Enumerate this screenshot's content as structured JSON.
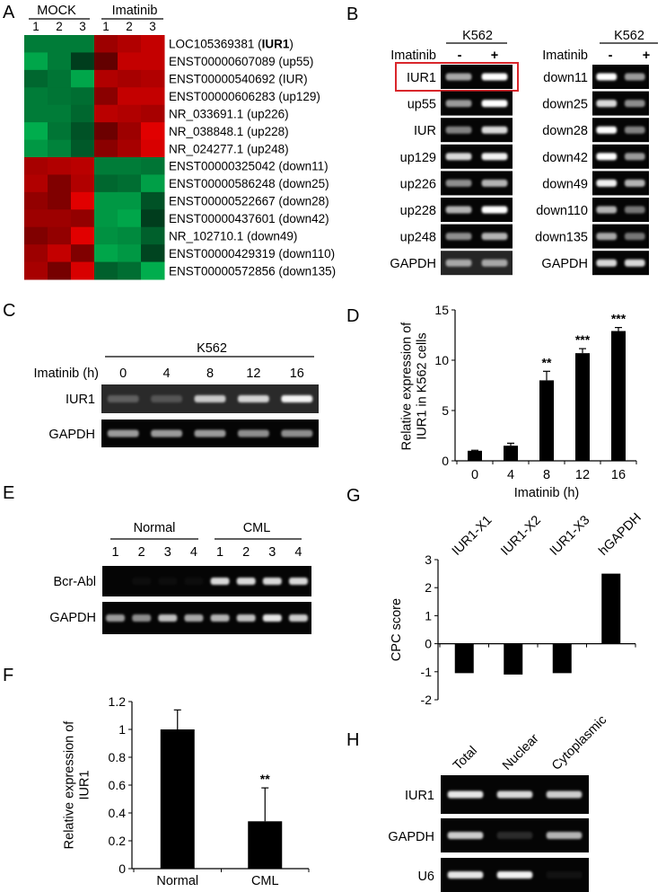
{
  "panel_labels": {
    "A": "A",
    "B": "B",
    "C": "C",
    "D": "D",
    "E": "E",
    "F": "F",
    "G": "G",
    "H": "H"
  },
  "panel_A": {
    "groups": [
      {
        "name": "MOCK",
        "cols": [
          "1",
          "2",
          "3"
        ]
      },
      {
        "name": "Imatinib",
        "cols": [
          "1",
          "2",
          "3"
        ]
      }
    ],
    "colors": {
      "high": "#e00000",
      "low": "#00b050",
      "mid": "#1a1a00"
    },
    "rows": [
      {
        "id": "LOC105369381",
        "name": "IUR1",
        "bold": true,
        "values": [
          -0.6,
          -0.6,
          -0.6,
          0.6,
          0.7,
          0.8
        ]
      },
      {
        "id": "ENST00000607089",
        "name": "up55",
        "values": [
          -0.9,
          -0.6,
          -0.15,
          0.3,
          0.8,
          0.8
        ]
      },
      {
        "id": "ENST00000540692",
        "name": "IUR",
        "values": [
          -0.45,
          -0.55,
          -0.9,
          0.7,
          0.65,
          0.7
        ]
      },
      {
        "id": "ENST00000606283",
        "name": "up129",
        "values": [
          -0.6,
          -0.55,
          -0.5,
          0.5,
          0.8,
          0.8
        ]
      },
      {
        "id": "NR_033691.1",
        "name": "up226",
        "values": [
          -0.6,
          -0.6,
          -0.45,
          0.75,
          0.7,
          0.65
        ]
      },
      {
        "id": "NR_038848.1",
        "name": "up228",
        "values": [
          -0.95,
          -0.55,
          -0.3,
          0.35,
          0.6,
          0.95
        ]
      },
      {
        "id": "NR_024277.1",
        "name": "up248",
        "values": [
          -0.8,
          -0.65,
          -0.35,
          0.5,
          0.65,
          0.9
        ]
      },
      {
        "id": "ENST00000325042",
        "name": "down11",
        "values": [
          0.65,
          0.7,
          0.75,
          -0.6,
          -0.6,
          -0.55
        ]
      },
      {
        "id": "ENST00000586248",
        "name": "down25",
        "values": [
          0.7,
          0.45,
          0.7,
          -0.45,
          -0.5,
          -0.85
        ]
      },
      {
        "id": "ENST00000522667",
        "name": "down28",
        "values": [
          0.55,
          0.45,
          0.95,
          -0.8,
          -0.8,
          -0.3
        ]
      },
      {
        "id": "ENST00000437601",
        "name": "down42",
        "values": [
          0.6,
          0.6,
          0.55,
          -0.8,
          -0.9,
          -0.15
        ]
      },
      {
        "id": "NR_102710.1",
        "name": "down49",
        "values": [
          0.45,
          0.55,
          0.95,
          -0.75,
          -0.7,
          -0.4
        ]
      },
      {
        "id": "ENST00000429319",
        "name": "down110",
        "values": [
          0.6,
          0.8,
          0.45,
          -0.9,
          -0.8,
          -0.2
        ]
      },
      {
        "id": "ENST00000572856",
        "name": "down135",
        "values": [
          0.65,
          0.4,
          0.9,
          -0.4,
          -0.5,
          -0.95
        ]
      }
    ]
  },
  "panel_B": {
    "highlight_color": "#d9262b",
    "highlighted_row": "IUR1",
    "blots": [
      {
        "cell": "K562",
        "treatment": "Imatinib",
        "lanes": [
          "-",
          "+"
        ],
        "rows": [
          {
            "label": "IUR1",
            "bands": [
              0.65,
              1.0
            ]
          },
          {
            "label": "up55",
            "bands": [
              0.6,
              1.0
            ]
          },
          {
            "label": "IUR",
            "bands": [
              0.5,
              0.85
            ]
          },
          {
            "label": "up129",
            "bands": [
              0.85,
              0.95
            ]
          },
          {
            "label": "up226",
            "bands": [
              0.55,
              0.7
            ]
          },
          {
            "label": "up228",
            "bands": [
              0.7,
              1.0
            ]
          },
          {
            "label": "up248",
            "bands": [
              0.55,
              0.7
            ]
          },
          {
            "label": "GAPDH",
            "bands": [
              0.6,
              0.6
            ]
          }
        ]
      },
      {
        "cell": "K562",
        "treatment": "Imatinib",
        "lanes": [
          "-",
          "+"
        ],
        "rows": [
          {
            "label": "down11",
            "bands": [
              1.0,
              0.6
            ]
          },
          {
            "label": "down25",
            "bands": [
              0.85,
              0.55
            ]
          },
          {
            "label": "down28",
            "bands": [
              1.0,
              0.5
            ]
          },
          {
            "label": "down42",
            "bands": [
              1.0,
              0.6
            ]
          },
          {
            "label": "down49",
            "bands": [
              0.95,
              0.7
            ]
          },
          {
            "label": "down110",
            "bands": [
              0.7,
              0.45
            ]
          },
          {
            "label": "down135",
            "bands": [
              0.65,
              0.45
            ]
          },
          {
            "label": "GAPDH",
            "bands": [
              0.85,
              0.85
            ]
          }
        ]
      }
    ]
  },
  "panel_C": {
    "cell": "K562",
    "treatment": "Imatinib (h)",
    "lanes": [
      "0",
      "4",
      "8",
      "12",
      "16"
    ],
    "rows": [
      {
        "label": "IUR1",
        "bands": [
          0.25,
          0.2,
          0.75,
          0.8,
          0.95
        ]
      },
      {
        "label": "GAPDH",
        "bands": [
          0.6,
          0.6,
          0.6,
          0.55,
          0.55
        ]
      }
    ]
  },
  "panel_E": {
    "groups": [
      {
        "name": "Normal",
        "lanes": [
          "1",
          "2",
          "3",
          "4"
        ]
      },
      {
        "name": "CML",
        "lanes": [
          "1",
          "2",
          "3",
          "4"
        ]
      }
    ],
    "rows": [
      {
        "label": "Bcr-Abl",
        "bands": [
          0,
          0.03,
          0.03,
          0.03,
          0.85,
          0.85,
          0.85,
          0.85
        ]
      },
      {
        "label": "GAPDH",
        "bands": [
          0.6,
          0.55,
          0.75,
          0.65,
          0.7,
          0.75,
          0.9,
          0.8
        ]
      }
    ]
  },
  "panel_H": {
    "lanes": [
      "Total",
      "Nuclear",
      "Cytoplasmic"
    ],
    "rows": [
      {
        "label": "IUR1",
        "bands": [
          0.9,
          0.85,
          0.8
        ]
      },
      {
        "label": "GAPDH",
        "bands": [
          0.8,
          0.15,
          0.7
        ]
      },
      {
        "label": "U6",
        "bands": [
          0.9,
          0.95,
          0.05
        ]
      }
    ]
  },
  "chart_data": [
    {
      "panel": "D",
      "type": "bar",
      "categories": [
        "0",
        "4",
        "8",
        "12",
        "16"
      ],
      "values": [
        1.0,
        1.5,
        8.0,
        10.7,
        12.9
      ],
      "errors": [
        0.05,
        0.25,
        0.9,
        0.45,
        0.35
      ],
      "annotations": [
        "",
        "",
        "**",
        "***",
        "***"
      ],
      "xlabel": "Imatinib (h)",
      "ylabel": [
        "Relative expression of",
        "IUR1 in K562 cells"
      ],
      "ylim": [
        0,
        15
      ],
      "yticks": [
        "0",
        "5",
        "10",
        "15"
      ],
      "grid": false
    },
    {
      "panel": "F",
      "type": "bar",
      "categories": [
        "Normal",
        "CML"
      ],
      "values": [
        1.0,
        0.34
      ],
      "errors": [
        0.14,
        0.24
      ],
      "annotations": [
        "",
        "**"
      ],
      "xlabel": "",
      "ylabel": [
        "Relative expression of",
        "IUR1"
      ],
      "ylim": [
        0,
        1.2
      ],
      "yticks": [
        "0",
        "0.2",
        "0.4",
        "0.6",
        "0.8",
        "1",
        "1.2"
      ],
      "grid": false
    },
    {
      "panel": "G",
      "type": "bar",
      "categories": [
        "IUR1-X1",
        "IUR1-X2",
        "IUR1-X3",
        "hGAPDH"
      ],
      "values": [
        -1.05,
        -1.1,
        -1.05,
        2.5
      ],
      "xlabel": "",
      "ylabel": [
        "CPC score"
      ],
      "ylim": [
        -2,
        3
      ],
      "yticks": [
        "-2",
        "-1",
        "0",
        "1",
        "2",
        "3"
      ],
      "grid": false
    }
  ]
}
